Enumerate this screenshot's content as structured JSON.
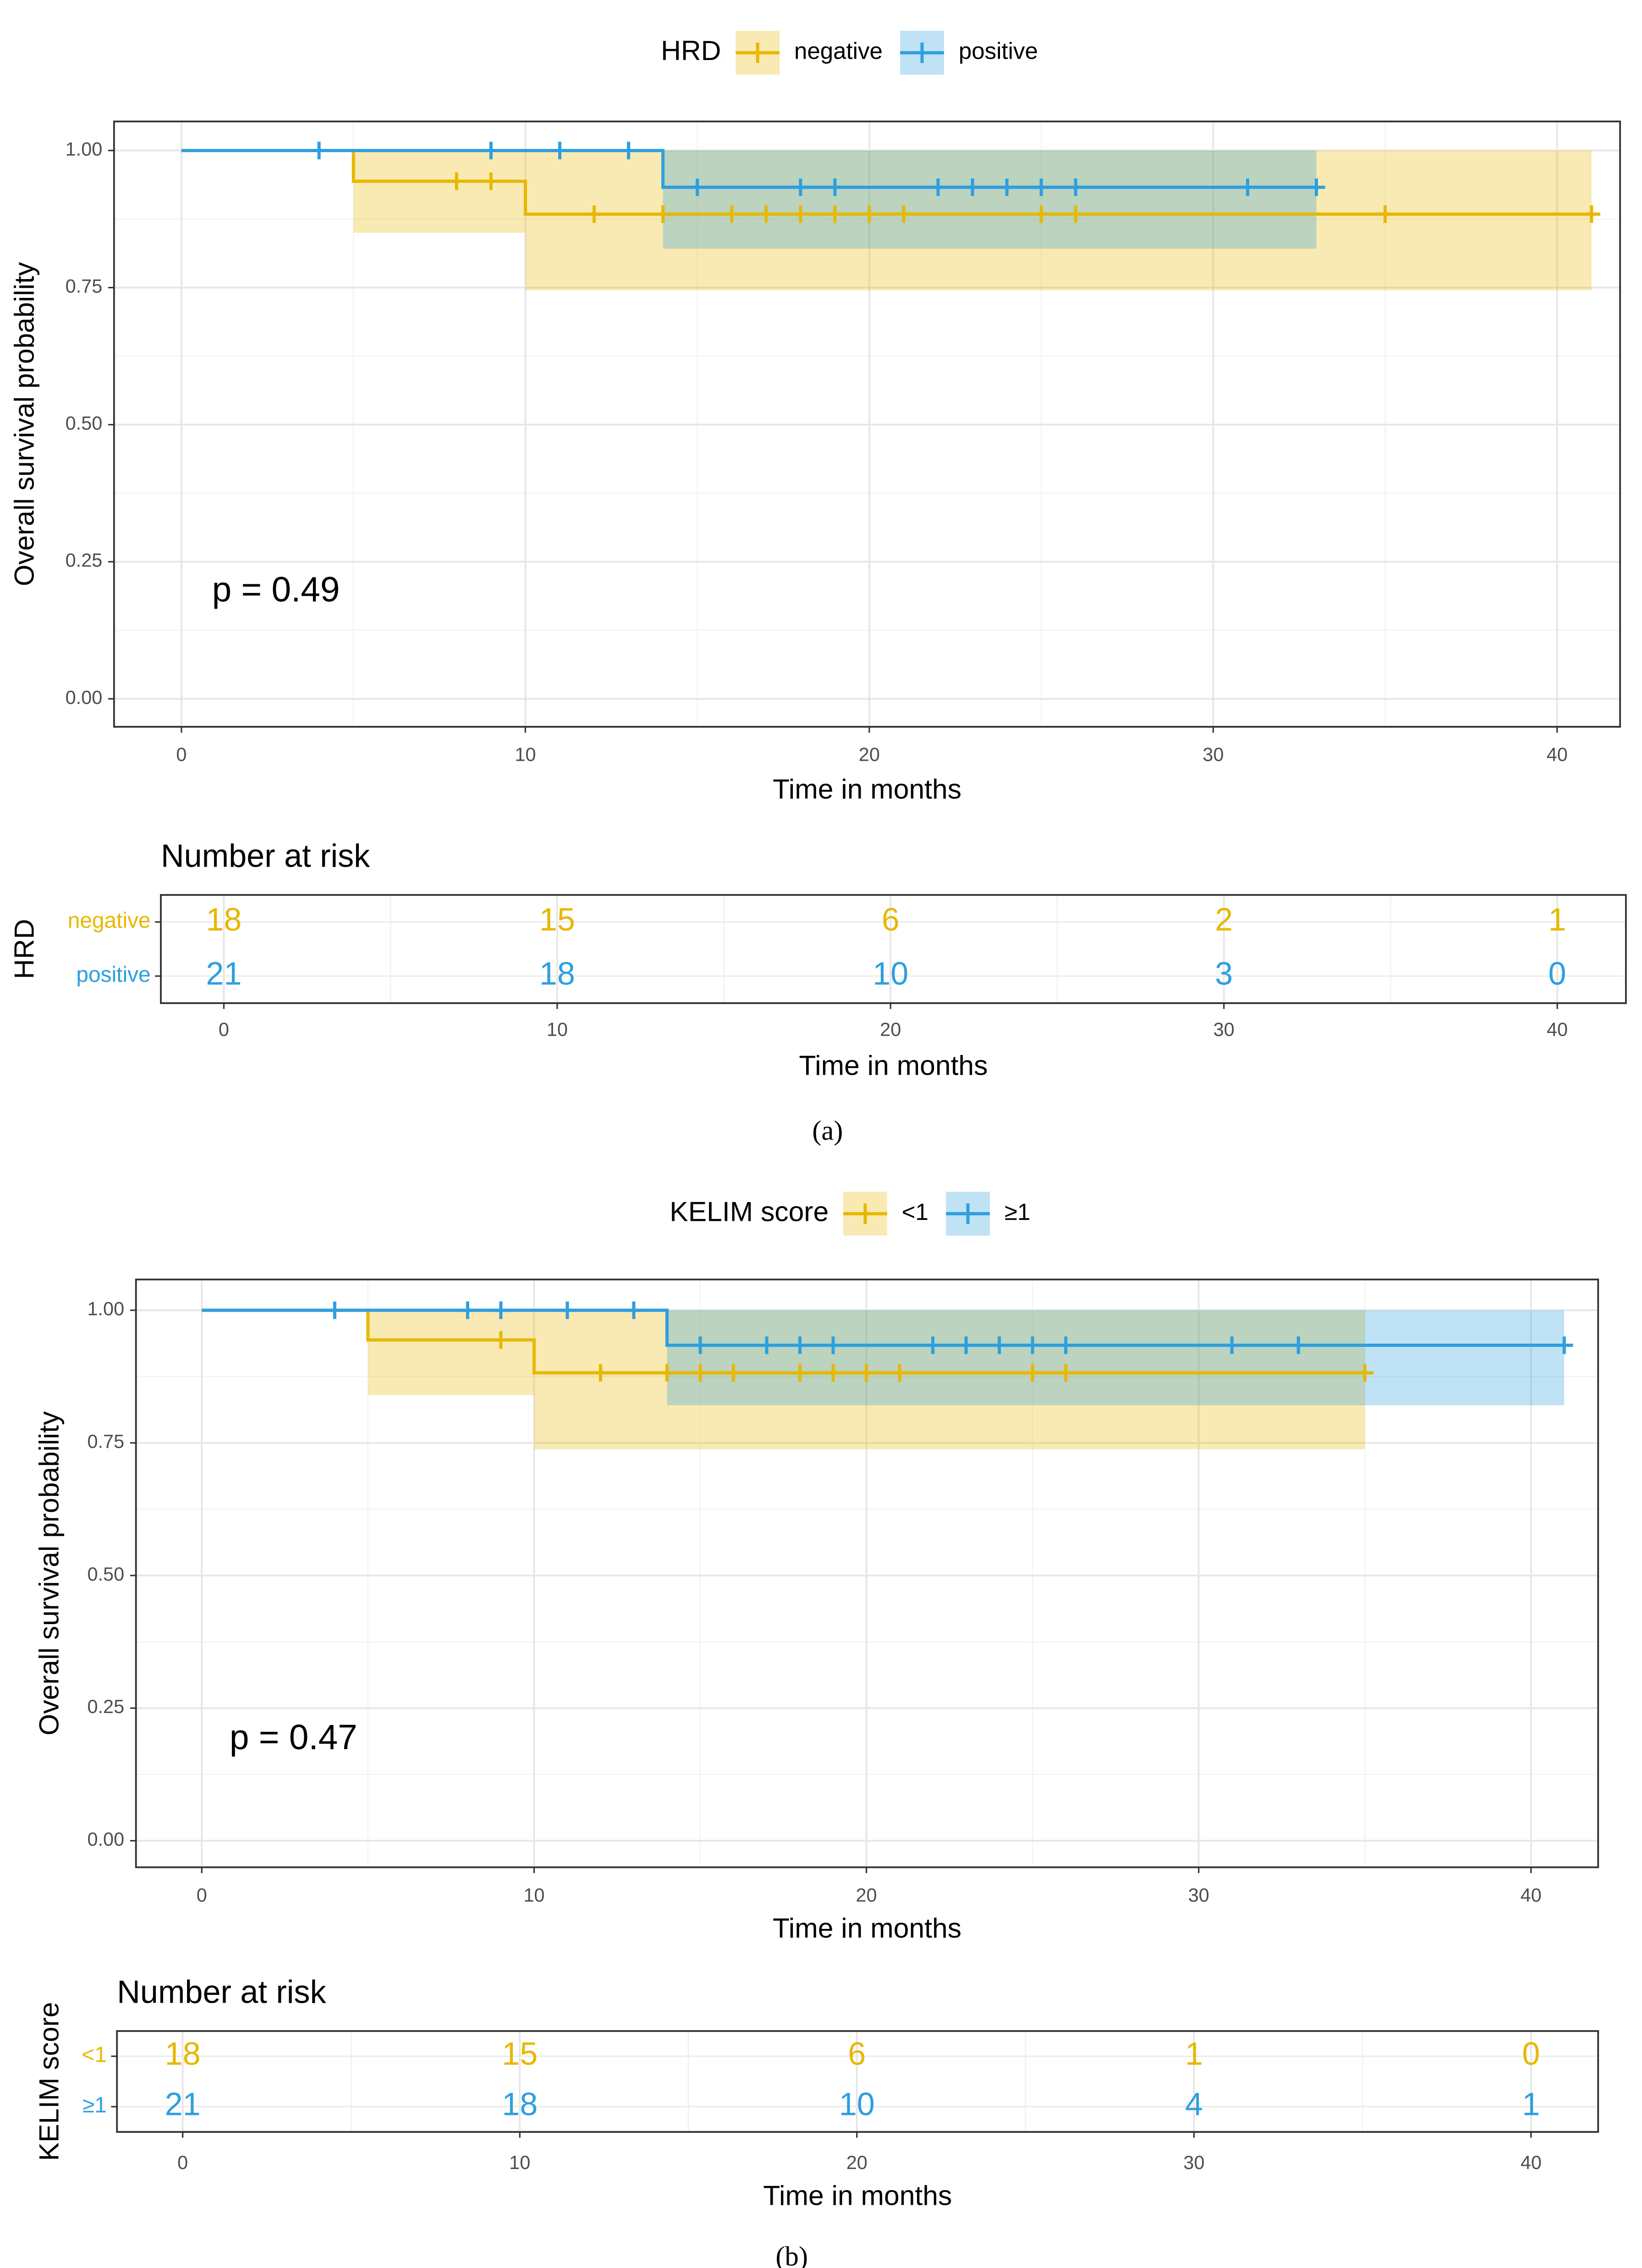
{
  "chart_data": [
    {
      "type": "km",
      "legend_title": "HRD",
      "x_label": "Time in months",
      "y_label": "Overall survival probability",
      "annotation": "p = 0.49",
      "xlim": [
        -1.96,
        41.83
      ],
      "ylim": [
        -0.051,
        1.053
      ],
      "xticks": [
        0,
        10,
        20,
        30,
        40
      ],
      "yticks": [
        {
          "value": 0,
          "label": "0.00"
        },
        {
          "value": 0.25,
          "label": "0.25"
        },
        {
          "value": 0.5,
          "label": "0.50"
        },
        {
          "value": 0.75,
          "label": "0.75"
        },
        {
          "value": 1,
          "label": "1.00"
        }
      ],
      "grid": true,
      "series": [
        {
          "name": "negative",
          "color": "#E7B800",
          "x": [
            0,
            5,
            10
          ],
          "values": [
            1,
            0.944,
            0.884
          ],
          "ci_upper": [
            1,
            1,
            1
          ],
          "ci_lower": [
            1,
            0.85,
            0.745
          ],
          "censor_x": [
            8,
            9,
            12,
            14,
            16,
            17,
            18,
            19,
            20,
            21,
            25,
            26,
            35,
            41
          ],
          "censor_values": [
            0.944,
            0.944,
            0.884,
            0.884,
            0.884,
            0.884,
            0.884,
            0.884,
            0.884,
            0.884,
            0.884,
            0.884,
            0.884,
            0.884
          ]
        },
        {
          "name": "positive",
          "color": "#2E9FDF",
          "x": [
            0,
            14
          ],
          "values": [
            1,
            0.933
          ],
          "ci_upper": [
            1,
            1
          ],
          "ci_lower": [
            1,
            0.821
          ],
          "censor_x": [
            4,
            9,
            11,
            13,
            15,
            18,
            19,
            22,
            23,
            24,
            25,
            26,
            31,
            33
          ],
          "censor_values": [
            1,
            1,
            1,
            1,
            0.933,
            0.933,
            0.933,
            0.933,
            0.933,
            0.933,
            0.933,
            0.933,
            0.933,
            0.933
          ]
        }
      ]
    },
    {
      "type": "risk_table",
      "title": "Number at risk",
      "y_label": "HRD",
      "x_label": "Time in months",
      "caption": "(a)",
      "xlim": [
        -1.89,
        42.06
      ],
      "xticks": [
        0,
        10,
        20,
        30,
        40
      ],
      "x": [
        0,
        10,
        20,
        30,
        40
      ],
      "series": [
        {
          "name": "negative",
          "color": "#E7B800",
          "values": [
            18,
            15,
            6,
            2,
            1
          ]
        },
        {
          "name": "positive",
          "color": "#2E9FDF",
          "values": [
            21,
            18,
            10,
            3,
            0
          ]
        }
      ]
    },
    {
      "type": "km",
      "legend_title": "KELIM score",
      "x_label": "Time in months",
      "y_label": "Overall survival probability",
      "annotation": "p = 0.47",
      "xlim": [
        -1.98,
        42.02
      ],
      "ylim": [
        -0.05,
        1.058
      ],
      "xticks": [
        0,
        10,
        20,
        30,
        40
      ],
      "yticks": [
        {
          "value": 0,
          "label": "0.00"
        },
        {
          "value": 0.25,
          "label": "0.25"
        },
        {
          "value": 0.5,
          "label": "0.50"
        },
        {
          "value": 0.75,
          "label": "0.75"
        },
        {
          "value": 1,
          "label": "1.00"
        }
      ],
      "grid": true,
      "series": [
        {
          "name": "<1",
          "color": "#E7B800",
          "x": [
            0,
            5,
            10
          ],
          "values": [
            1,
            0.944,
            0.882
          ],
          "ci_upper": [
            1,
            1,
            1
          ],
          "ci_lower": [
            1,
            0.84,
            0.738
          ],
          "censor_x": [
            9,
            12,
            14,
            15,
            16,
            18,
            19,
            20,
            21,
            25,
            26,
            35
          ],
          "censor_values": [
            0.944,
            0.882,
            0.882,
            0.882,
            0.882,
            0.882,
            0.882,
            0.882,
            0.882,
            0.882,
            0.882,
            0.882
          ]
        },
        {
          "name": "≥1",
          "color": "#2E9FDF",
          "x": [
            0,
            14
          ],
          "values": [
            1,
            0.934
          ],
          "ci_upper": [
            1,
            1
          ],
          "ci_lower": [
            1,
            0.821
          ],
          "censor_x": [
            4,
            8,
            9,
            11,
            13,
            15,
            17,
            18,
            19,
            22,
            23,
            24,
            25,
            26,
            31,
            33,
            41
          ],
          "censor_values": [
            1,
            1,
            1,
            1,
            1,
            0.934,
            0.934,
            0.934,
            0.934,
            0.934,
            0.934,
            0.934,
            0.934,
            0.934,
            0.934,
            0.934,
            0.934
          ]
        }
      ]
    },
    {
      "type": "risk_table",
      "title": "Number at risk",
      "y_label": "KELIM score",
      "x_label": "Time in months",
      "caption": "(b)",
      "xlim": [
        -1.95,
        41.99
      ],
      "xticks": [
        0,
        10,
        20,
        30,
        40
      ],
      "x": [
        0,
        10,
        20,
        30,
        40
      ],
      "series": [
        {
          "name": "<1",
          "color": "#E7B800",
          "values": [
            18,
            15,
            6,
            1,
            0
          ]
        },
        {
          "name": "≥1",
          "color": "#2E9FDF",
          "values": [
            21,
            18,
            10,
            4,
            1
          ]
        }
      ]
    }
  ]
}
